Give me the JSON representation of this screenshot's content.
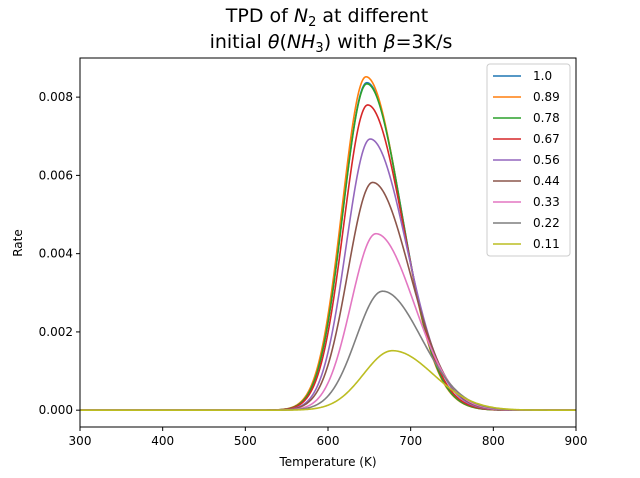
{
  "chart_data": {
    "type": "line",
    "title": "TPD of N₂ at different initial θ(NH₃) with β=3K/s",
    "title_parts": {
      "l1_a": "TPD of ",
      "l1_b": "N",
      "l1_c": "2",
      "l1_d": " at different",
      "l2_a": "initial ",
      "l2_b": "θ",
      "l2_c": "(",
      "l2_d": "NH",
      "l2_e": "3",
      "l2_f": ") with ",
      "l2_g": "β",
      "l2_h": "=3K/s"
    },
    "xlabel": "Temperature (K)",
    "ylabel": "Rate",
    "xlim": [
      300,
      900
    ],
    "ylim": [
      -0.00043,
      0.009
    ],
    "xticks": [
      "300",
      "400",
      "500",
      "600",
      "700",
      "800",
      "900"
    ],
    "yticks": [
      "0.000",
      "0.002",
      "0.004",
      "0.006",
      "0.008"
    ],
    "grid": false,
    "legend_position": "top-right",
    "series": [
      {
        "name": "1.0",
        "color": "#1f77b4",
        "peak_temperature": 647,
        "peak_rate": 0.00837,
        "width_low": 29,
        "width_high": 42
      },
      {
        "name": "0.89",
        "color": "#ff7f0e",
        "peak_temperature": 646,
        "peak_rate": 0.00852,
        "width_low": 29,
        "width_high": 42
      },
      {
        "name": "0.78",
        "color": "#2ca02c",
        "peak_temperature": 647,
        "peak_rate": 0.00834,
        "width_low": 29,
        "width_high": 42
      },
      {
        "name": "0.67",
        "color": "#d62728",
        "peak_temperature": 648,
        "peak_rate": 0.0078,
        "width_low": 29,
        "width_high": 43
      },
      {
        "name": "0.56",
        "color": "#9467bd",
        "peak_temperature": 651,
        "peak_rate": 0.00693,
        "width_low": 29,
        "width_high": 44
      },
      {
        "name": "0.44",
        "color": "#8c564b",
        "peak_temperature": 654,
        "peak_rate": 0.00582,
        "width_low": 30,
        "width_high": 45
      },
      {
        "name": "0.33",
        "color": "#e377c2",
        "peak_temperature": 658,
        "peak_rate": 0.00451,
        "width_low": 30,
        "width_high": 46
      },
      {
        "name": "0.22",
        "color": "#7f7f7f",
        "peak_temperature": 666,
        "peak_rate": 0.00304,
        "width_low": 32,
        "width_high": 47
      },
      {
        "name": "0.11",
        "color": "#bcbd22",
        "peak_temperature": 678,
        "peak_rate": 0.00152,
        "width_low": 35,
        "width_high": 49
      }
    ]
  }
}
